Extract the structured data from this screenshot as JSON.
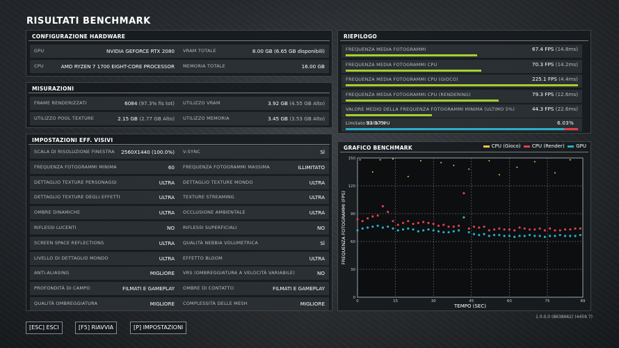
{
  "title": "RISULTATI BENCHMARK",
  "hardware": {
    "heading": "CONFIGURAZIONE HARDWARE",
    "rows": [
      {
        "l1": "GPU",
        "v1": "NVIDIA GEFORCE RTX 2080",
        "l2": "VRAM TOTALE",
        "v2": "8.00 GB",
        "v2b": "(6.65 GB disponibili)"
      },
      {
        "l1": "CPU",
        "v1": "AMD RYZEN 7 1700 EIGHT-CORE PROCESSOR",
        "l2": "MEMORIA TOTALE",
        "v2": "16.00 GB",
        "v2b": ""
      }
    ]
  },
  "measurements": {
    "heading": "MISURAZIONI",
    "rows": [
      {
        "l1": "FRAME RENDERIZZATI",
        "v1": "6084",
        "v1b": "(97.3% fis tot)",
        "l2": "UTILIZZO VRAM",
        "v2": "3.92 GB",
        "v2b": "(4.55 GB Alto)"
      },
      {
        "l1": "UTILIZZO POOL TEXTURE",
        "v1": "2.15 GB",
        "v1b": "(2.77 GB Alto)",
        "l2": "UTILIZZO MEMORIA",
        "v2": "3.45 GB",
        "v2b": "(3.53 GB Alto)"
      }
    ]
  },
  "visual": {
    "heading": "IMPOSTAZIONI EFF. VISIVI",
    "rows": [
      {
        "l1": "SCALA DI RISOLUZIONE FINESTRA",
        "v1": "2560X1440 (100.0%)",
        "l2": "V-SYNC",
        "v2": "SÌ"
      },
      {
        "l1": "FREQUENZA FOTOGRAMMI MINIMA",
        "v1": "60",
        "l2": "FREQUENZA FOTOGRAMMI MASSIMA",
        "v2": "ILLIMITATO"
      },
      {
        "l1": "DETTAGLIO TEXTURE PERSONAGGI",
        "v1": "ULTRA",
        "l2": "DETTAGLIO TEXTURE MONDO",
        "v2": "ULTRA"
      },
      {
        "l1": "DETTAGLIO TEXTURE DEGLI EFFETTI",
        "v1": "ULTRA",
        "l2": "TEXTURE STREAMING",
        "v2": "ULTRA"
      },
      {
        "l1": "OMBRE DINAMICHE",
        "v1": "ULTRA",
        "l2": "OCCLUSIONE AMBIENTALE",
        "v2": "ULTRA"
      },
      {
        "l1": "RIFLESSI LUCENTI",
        "v1": "NO",
        "l2": "RIFLESSI SUPERFICIALI",
        "v2": "NO"
      },
      {
        "l1": "SCREEN SPACE REFLECTIONS",
        "v1": "ULTRA",
        "l2": "QUALITÀ NEBBIA VOLUMETRICA",
        "v2": "SÌ"
      },
      {
        "l1": "LIVELLO DI DETTAGLIO MONDO",
        "v1": "ULTRA",
        "l2": "EFFETTO BLOOM",
        "v2": "ULTRA"
      },
      {
        "l1": "ANTI-ALIASING",
        "v1": "MIGLIORE",
        "l2": "VRS (OMBREGGIATURA A VELOCITÀ VARIABILE)",
        "v2": "NO"
      },
      {
        "l1": "PROFONDITÀ DI CAMPO",
        "v1": "FILMATI E GAMEPLAY",
        "l2": "OMBRE DI CONTATTO",
        "v2": "FILMATI E GAMEPLAY"
      },
      {
        "l1": "QUALITÀ OMBREGGIATURA",
        "v1": "MIGLIORE",
        "l2": "COMPLESSITÀ DELLE MESH",
        "v2": "MIGLIORE"
      }
    ]
  },
  "summary": {
    "heading": "RIEPILOGO",
    "rows": [
      {
        "label": "FREQUENZA MEDIA FOTOGRAMMI",
        "value": "67.4 FPS",
        "sub": "(14.8ms)",
        "fill": 0.565
      },
      {
        "label": "FREQUENZA MEDIA FOTOGRAMMI CPU",
        "value": "70.3 FPS",
        "sub": "(14.2ms)",
        "fill": 0.585
      },
      {
        "label": "FREQUENZA MEDIA FOTOGRAMMI CPU (GIOCO)",
        "value": "225.1 FPS",
        "sub": "(4.4ms)",
        "fill": 1.0
      },
      {
        "label": "FREQUENZA MEDIA FOTOGRAMMI CPU (RENDERING)",
        "value": "79.3 FPS",
        "sub": "(12.6ms)",
        "fill": 0.66
      },
      {
        "label": "VALORE MEDIO DELLA FREQUENZA FOTOGRAMMI MINIMA (ULTIMO 5%)",
        "value": "44.3 FPS",
        "sub": "(22.6ms)",
        "fill": 0.37
      }
    ],
    "limit": {
      "left_label": "Limitato dalla GPU",
      "left_value": "93.97%",
      "right_value": "6.03%",
      "right_label": "Limitato dalla CPU",
      "gpu_fraction": 0.9397
    }
  },
  "colors": {
    "cpu_game": "#e8c84a",
    "cpu_render": "#e0404e",
    "gpu": "#2ab0c6",
    "bar_green": "#a6cf2e"
  },
  "chart_data": {
    "type": "scatter",
    "title": "GRAFICO BENCHMARK",
    "xlabel": "TEMPO (SEC)",
    "ylabel": "FREQUENZA FOTOGRAMMI (FPS)",
    "xlim": [
      0,
      89
    ],
    "ylim": [
      0,
      150
    ],
    "xticks": [
      0,
      15,
      30,
      45,
      60,
      75,
      89
    ],
    "yticks": [
      0,
      30,
      60,
      90,
      120,
      150
    ],
    "grid": true,
    "legend_position": "top-right",
    "series": [
      {
        "name": "CPU (Gioco)",
        "x": [
          1,
          6,
          9,
          14,
          20,
          25,
          33,
          38,
          44,
          52,
          56,
          63,
          70,
          78,
          84
        ],
        "y": [
          148,
          135,
          148,
          149,
          130,
          147,
          145,
          142,
          138,
          147,
          132,
          140,
          146,
          134,
          148
        ]
      },
      {
        "name": "CPU (Render)",
        "x": [
          0,
          2,
          4,
          6,
          8,
          10,
          12,
          14,
          16,
          18,
          20,
          22,
          24,
          26,
          28,
          30,
          32,
          34,
          36,
          38,
          40,
          42,
          44,
          46,
          48,
          50,
          52,
          54,
          56,
          58,
          60,
          62,
          64,
          66,
          68,
          70,
          72,
          74,
          76,
          78,
          80,
          82,
          84,
          86,
          88
        ],
        "y": [
          84,
          82,
          85,
          87,
          88,
          98,
          92,
          82,
          78,
          80,
          82,
          79,
          80,
          81,
          80,
          79,
          77,
          78,
          76,
          76,
          77,
          112,
          74,
          76,
          75,
          76,
          72,
          73,
          74,
          73,
          73,
          72,
          75,
          74,
          73,
          73,
          74,
          72,
          74,
          72,
          72,
          73,
          73,
          74,
          74
        ]
      },
      {
        "name": "GPU",
        "x": [
          0,
          2,
          4,
          6,
          8,
          10,
          12,
          14,
          16,
          18,
          20,
          22,
          24,
          26,
          28,
          30,
          32,
          34,
          36,
          38,
          40,
          42,
          44,
          46,
          48,
          50,
          52,
          54,
          56,
          58,
          60,
          62,
          64,
          66,
          68,
          70,
          72,
          74,
          76,
          78,
          80,
          82,
          84,
          86,
          88
        ],
        "y": [
          72,
          74,
          75,
          76,
          77,
          75,
          76,
          74,
          72,
          73,
          74,
          73,
          71,
          72,
          73,
          72,
          71,
          70,
          70,
          71,
          72,
          86,
          70,
          68,
          67,
          68,
          66,
          67,
          67,
          66,
          66,
          65,
          66,
          66,
          67,
          66,
          66,
          65,
          66,
          66,
          67,
          66,
          66,
          66,
          67
        ]
      }
    ]
  },
  "buttons": {
    "esc": "[ESC] ESCI",
    "restart": "[F5] RIAVVIA",
    "settings": "[P] IMPOSTAZIONI"
  },
  "version": "1.0.0.0 (8638662) (4459 7)"
}
